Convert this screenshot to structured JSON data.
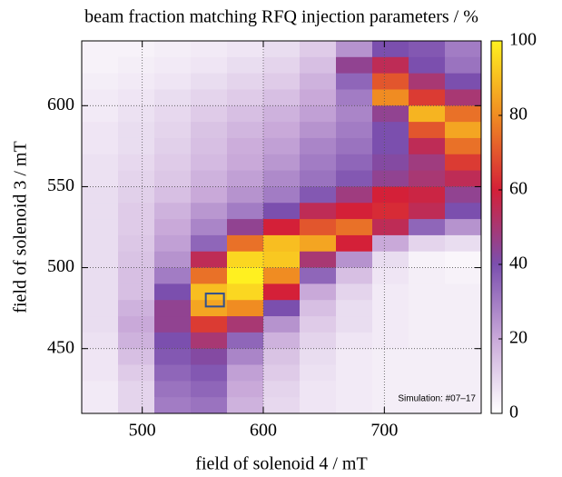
{
  "chart_data": {
    "type": "heatmap",
    "title": "beam fraction matching RFQ injection parameters / %",
    "x_label": "field of solenoid 4 / mT",
    "y_label": "field of solenoid 3 / mT",
    "annotation": "Simulation: #07–17",
    "x": [
      465,
      495,
      525,
      555,
      585,
      615,
      645,
      675,
      705,
      735,
      765
    ],
    "y": [
      635,
      625,
      615,
      605,
      595,
      585,
      575,
      565,
      555,
      545,
      535,
      525,
      515,
      505,
      495,
      485,
      475,
      465,
      455,
      445,
      435,
      425,
      415
    ],
    "z": [
      [
        3,
        3,
        4,
        5,
        6,
        8,
        12,
        25,
        40,
        38,
        30
      ],
      [
        3,
        4,
        5,
        6,
        8,
        10,
        15,
        45,
        55,
        40,
        32
      ],
      [
        4,
        5,
        6,
        8,
        10,
        12,
        18,
        35,
        70,
        50,
        40
      ],
      [
        5,
        6,
        8,
        10,
        12,
        15,
        20,
        30,
        80,
        65,
        50
      ],
      [
        5,
        7,
        9,
        12,
        15,
        18,
        22,
        28,
        45,
        88,
        75
      ],
      [
        6,
        8,
        10,
        14,
        17,
        20,
        25,
        30,
        40,
        70,
        85
      ],
      [
        6,
        8,
        11,
        15,
        19,
        22,
        28,
        32,
        40,
        55,
        75
      ],
      [
        7,
        9,
        12,
        16,
        20,
        24,
        30,
        35,
        42,
        48,
        65
      ],
      [
        7,
        10,
        13,
        18,
        22,
        27,
        32,
        38,
        45,
        50,
        55
      ],
      [
        8,
        11,
        15,
        20,
        25,
        30,
        38,
        48,
        60,
        58,
        45
      ],
      [
        8,
        12,
        18,
        24,
        30,
        40,
        55,
        60,
        62,
        55,
        40
      ],
      [
        8,
        12,
        20,
        28,
        45,
        60,
        70,
        75,
        55,
        35,
        25
      ],
      [
        8,
        13,
        22,
        35,
        75,
        90,
        85,
        60,
        20,
        10,
        8
      ],
      [
        8,
        14,
        25,
        55,
        95,
        92,
        50,
        25,
        8,
        3,
        2
      ],
      [
        8,
        15,
        30,
        75,
        100,
        80,
        35,
        15,
        6,
        4,
        3
      ],
      [
        8,
        15,
        40,
        90,
        95,
        60,
        20,
        10,
        5,
        4,
        4
      ],
      [
        8,
        18,
        45,
        85,
        80,
        40,
        15,
        8,
        5,
        4,
        4
      ],
      [
        8,
        20,
        45,
        65,
        50,
        25,
        12,
        8,
        5,
        4,
        4
      ],
      [
        7,
        18,
        40,
        50,
        35,
        18,
        10,
        6,
        5,
        4,
        4
      ],
      [
        6,
        15,
        38,
        42,
        28,
        14,
        8,
        5,
        4,
        4,
        4
      ],
      [
        6,
        12,
        35,
        38,
        22,
        12,
        7,
        5,
        4,
        4,
        4
      ],
      [
        5,
        10,
        32,
        35,
        20,
        10,
        6,
        5,
        4,
        4,
        4
      ],
      [
        5,
        10,
        30,
        32,
        18,
        9,
        6,
        5,
        4,
        4,
        4
      ]
    ],
    "xlim": [
      450,
      780
    ],
    "ylim": [
      410,
      640
    ],
    "xticks": [
      500,
      600,
      700
    ],
    "yticks": [
      450,
      500,
      550,
      600
    ],
    "clim": [
      0,
      100
    ],
    "cticks": [
      0,
      20,
      40,
      60,
      80,
      100
    ],
    "colormap": [
      "#ffffff",
      "#c9a9d9",
      "#7b4fae",
      "#d42038",
      "#f08c22",
      "#fff020"
    ],
    "highlight": {
      "x": 560,
      "y": 480,
      "color": "#2f4f8f"
    },
    "grid": true
  }
}
